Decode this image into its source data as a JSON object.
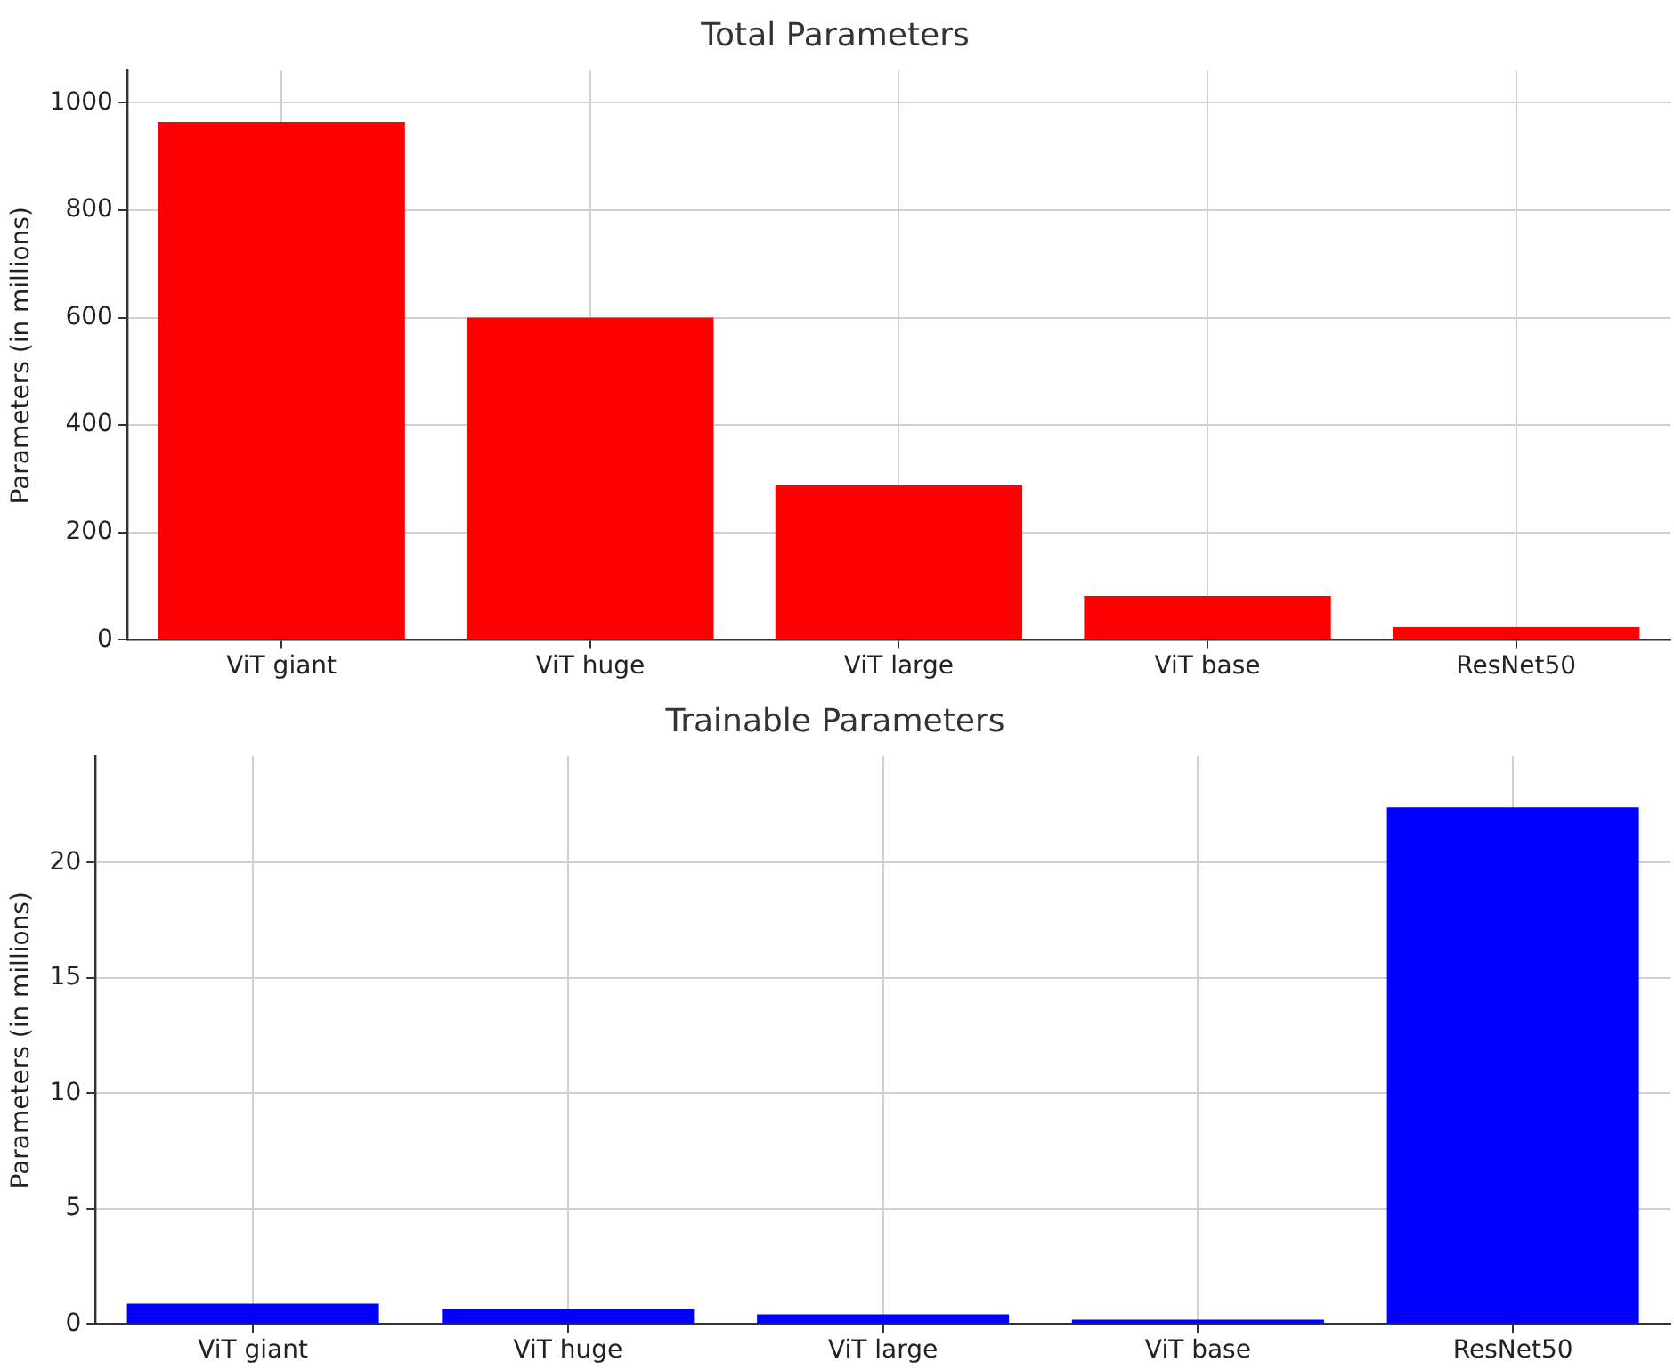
{
  "chart_data": [
    {
      "type": "bar",
      "title": "Total Parameters",
      "ylabel": "Parameters (in millions)",
      "categories": [
        "ViT giant",
        "ViT huge",
        "ViT large",
        "ViT base",
        "ResNet50"
      ],
      "values": [
        964,
        600,
        288,
        82,
        24
      ],
      "color": "#ff0000",
      "ylim": [
        0,
        1060
      ],
      "yticks": [
        0,
        200,
        400,
        600,
        800,
        1000
      ],
      "grid": true
    },
    {
      "type": "bar",
      "title": "Trainable Parameters",
      "ylabel": "Parameters (in millions)",
      "categories": [
        "ViT giant",
        "ViT huge",
        "ViT large",
        "ViT base",
        "ResNet50"
      ],
      "values": [
        0.88,
        0.65,
        0.42,
        0.19,
        22.4
      ],
      "color": "#0000ff",
      "ylim": [
        0,
        24.6
      ],
      "yticks": [
        0,
        5,
        10,
        15,
        20
      ],
      "grid": true
    }
  ]
}
